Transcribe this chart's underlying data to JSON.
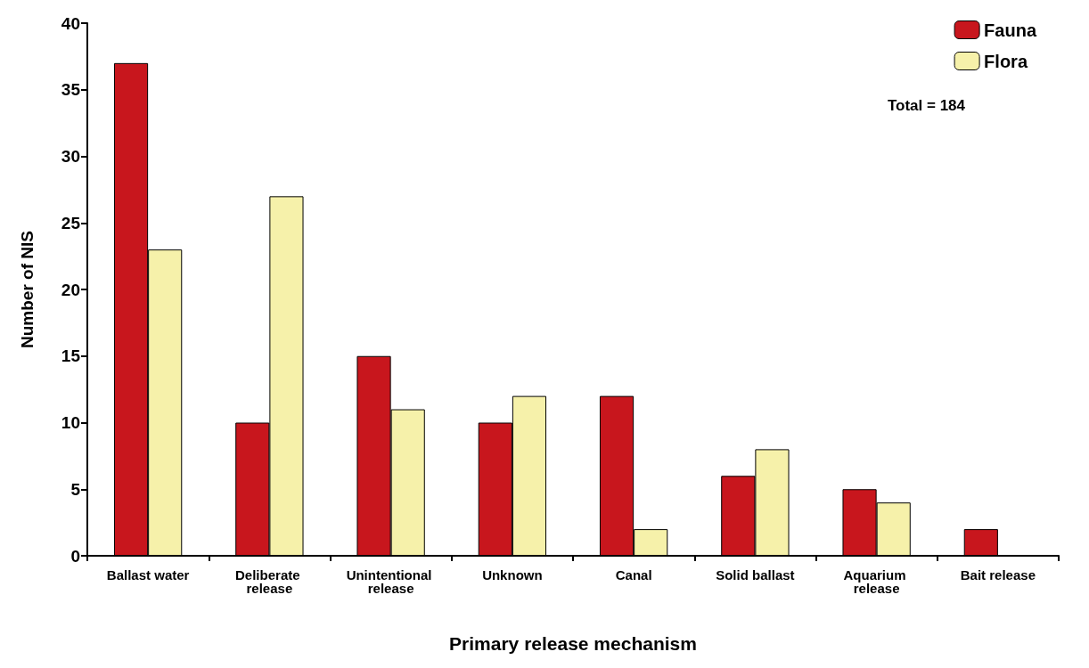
{
  "chart_data": {
    "type": "bar",
    "xlabel": "Primary release mechanism",
    "ylabel": "Number of NIS",
    "categories": [
      "Ballast water",
      "Deliberate release",
      "Unintentional release",
      "Unknown",
      "Canal",
      "Solid ballast",
      "Aquarium release",
      "Bait release"
    ],
    "series": [
      {
        "name": "Fauna",
        "color": "#c8161d",
        "values": [
          37,
          10,
          15,
          10,
          12,
          6,
          5,
          2
        ]
      },
      {
        "name": "Flora",
        "color": "#f6f1aa",
        "values": [
          23,
          27,
          11,
          12,
          2,
          8,
          4,
          null
        ]
      }
    ],
    "ylim": [
      0,
      40
    ],
    "yticks": [
      0,
      5,
      10,
      15,
      20,
      25,
      30,
      35,
      40
    ],
    "grid": false,
    "legend": "top right",
    "annotations": [
      "Total = 184"
    ]
  }
}
